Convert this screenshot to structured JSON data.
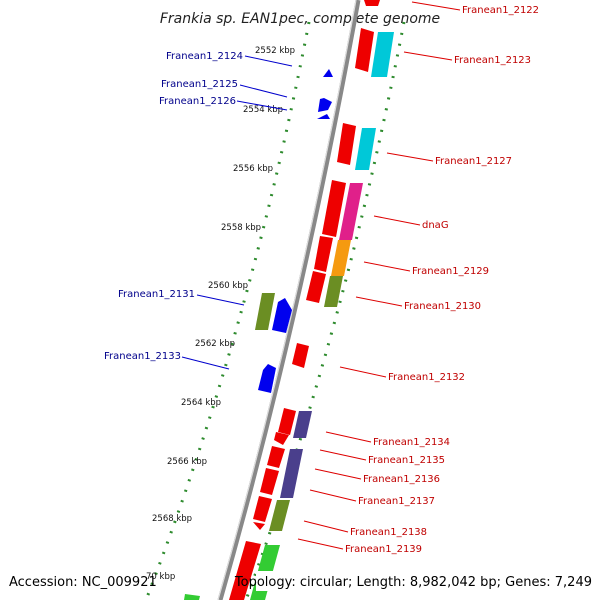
{
  "title": "Frankia sp. EAN1pec, complete genome",
  "footer": {
    "accession": "Accession: NC_009921",
    "topology": "Topology: circular; Length: 8,982,042 bp; Genes: 7,249"
  },
  "scale": {
    "ticks": [
      {
        "label": "2552 kbp"
      },
      {
        "label": "2554 kbp"
      },
      {
        "label": "2556 kbp"
      },
      {
        "label": "2558 kbp"
      },
      {
        "label": "2560 kbp"
      },
      {
        "label": "2562 kbp"
      },
      {
        "label": "2564 kbp"
      },
      {
        "label": "2566 kbp"
      },
      {
        "label": "2568 kbp"
      },
      {
        "label": "70 kbp"
      }
    ]
  },
  "genes_left": [
    {
      "name": "Franean1_2124"
    },
    {
      "name": "Franean1_2125"
    },
    {
      "name": "Franean1_2126"
    },
    {
      "name": "Franean1_2131"
    },
    {
      "name": "Franean1_2133"
    }
  ],
  "genes_right": [
    {
      "name": "Franean1_2122"
    },
    {
      "name": "Franean1_2123"
    },
    {
      "name": "Franean1_2127"
    },
    {
      "name": "dnaG"
    },
    {
      "name": "Franean1_2129"
    },
    {
      "name": "Franean1_2130"
    },
    {
      "name": "Franean1_2132"
    },
    {
      "name": "Franean1_2134"
    },
    {
      "name": "Franean1_2135"
    },
    {
      "name": "Franean1_2136"
    },
    {
      "name": "Franean1_2137"
    },
    {
      "name": "Franean1_2138"
    },
    {
      "name": "Franean1_2139"
    }
  ],
  "colors": {
    "backbone": "#808080",
    "scale_dots": "#2e8b2e",
    "forward_arrow": "#ee0000",
    "reverse_arrow": "#0000ee",
    "cyan": "#00c8d8",
    "magenta": "#e0208a",
    "orange": "#f59a10",
    "olive": "#6b8e23",
    "slate": "#4a3f8c",
    "green": "#33cc33",
    "left_label": "#00008b",
    "right_label": "#c00000"
  }
}
